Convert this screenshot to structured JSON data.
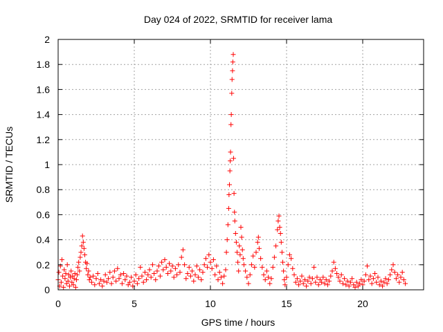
{
  "chart_data": {
    "type": "scatter",
    "title": "Day 024 of 2022, SRMTID for receiver lama",
    "xlabel": "GPS time / hours",
    "ylabel": "SRMTID / TECUs",
    "xlim": [
      0,
      24
    ],
    "ylim": [
      0,
      2
    ],
    "xticks": [
      0,
      5,
      10,
      15,
      20
    ],
    "yticks": [
      0,
      0.2,
      0.4,
      0.6,
      0.8,
      1,
      1.2,
      1.4,
      1.6,
      1.8,
      2
    ],
    "xtick_labels": [
      "0",
      "5",
      "10",
      "15",
      "20"
    ],
    "ytick_labels": [
      "0",
      "0.2",
      "0.4",
      "0.6",
      "0.8",
      "1",
      "1.2",
      "1.4",
      "1.6",
      "1.8",
      "2"
    ],
    "grid": true,
    "marker": "+",
    "color": "#ff0000",
    "series": [
      {
        "name": "SRMTID",
        "points": [
          [
            0.0,
            0.08
          ],
          [
            0.05,
            0.14
          ],
          [
            0.1,
            0.03
          ],
          [
            0.15,
            0.19
          ],
          [
            0.2,
            0.06
          ],
          [
            0.25,
            0.24
          ],
          [
            0.3,
            0.11
          ],
          [
            0.35,
            0.02
          ],
          [
            0.4,
            0.16
          ],
          [
            0.45,
            0.09
          ],
          [
            0.5,
            0.13
          ],
          [
            0.55,
            0.05
          ],
          [
            0.6,
            0.2
          ],
          [
            0.65,
            0.07
          ],
          [
            0.7,
            0.12
          ],
          [
            0.75,
            0.03
          ],
          [
            0.8,
            0.1
          ],
          [
            0.85,
            0.15
          ],
          [
            0.9,
            0.06
          ],
          [
            0.95,
            0.11
          ],
          [
            1.0,
            0.04
          ],
          [
            1.05,
            0.09
          ],
          [
            1.1,
            0.13
          ],
          [
            1.15,
            0.02
          ],
          [
            1.2,
            0.08
          ],
          [
            1.25,
            0.12
          ],
          [
            1.3,
            0.18
          ],
          [
            1.35,
            0.22
          ],
          [
            1.4,
            0.15
          ],
          [
            1.45,
            0.26
          ],
          [
            1.5,
            0.3
          ],
          [
            1.55,
            0.35
          ],
          [
            1.6,
            0.43
          ],
          [
            1.65,
            0.38
          ],
          [
            1.7,
            0.33
          ],
          [
            1.75,
            0.28
          ],
          [
            1.8,
            0.22
          ],
          [
            1.85,
            0.17
          ],
          [
            1.9,
            0.21
          ],
          [
            1.95,
            0.12
          ],
          [
            2.0,
            0.15
          ],
          [
            2.05,
            0.08
          ],
          [
            2.1,
            0.1
          ],
          [
            2.2,
            0.06
          ],
          [
            2.3,
            0.11
          ],
          [
            2.4,
            0.04
          ],
          [
            2.5,
            0.09
          ],
          [
            2.6,
            0.13
          ],
          [
            2.7,
            0.05
          ],
          [
            2.8,
            0.08
          ],
          [
            2.9,
            0.03
          ],
          [
            3.0,
            0.07
          ],
          [
            3.1,
            0.12
          ],
          [
            3.2,
            0.06
          ],
          [
            3.3,
            0.09
          ],
          [
            3.4,
            0.14
          ],
          [
            3.5,
            0.05
          ],
          [
            3.6,
            0.1
          ],
          [
            3.7,
            0.15
          ],
          [
            3.8,
            0.07
          ],
          [
            3.9,
            0.17
          ],
          [
            4.0,
            0.09
          ],
          [
            4.1,
            0.12
          ],
          [
            4.2,
            0.05
          ],
          [
            4.3,
            0.13
          ],
          [
            4.4,
            0.08
          ],
          [
            4.5,
            0.11
          ],
          [
            4.6,
            0.04
          ],
          [
            4.7,
            0.06
          ],
          [
            4.8,
            0.1
          ],
          [
            4.9,
            0.03
          ],
          [
            5.0,
            0.07
          ],
          [
            5.1,
            0.12
          ],
          [
            5.2,
            0.05
          ],
          [
            5.3,
            0.09
          ],
          [
            5.4,
            0.18
          ],
          [
            5.5,
            0.11
          ],
          [
            5.6,
            0.06
          ],
          [
            5.7,
            0.14
          ],
          [
            5.8,
            0.08
          ],
          [
            5.9,
            0.12
          ],
          [
            6.0,
            0.16
          ],
          [
            6.1,
            0.1
          ],
          [
            6.2,
            0.2
          ],
          [
            6.3,
            0.13
          ],
          [
            6.4,
            0.08
          ],
          [
            6.5,
            0.15
          ],
          [
            6.6,
            0.19
          ],
          [
            6.7,
            0.11
          ],
          [
            6.8,
            0.22
          ],
          [
            6.9,
            0.16
          ],
          [
            7.0,
            0.24
          ],
          [
            7.1,
            0.18
          ],
          [
            7.2,
            0.13
          ],
          [
            7.3,
            0.21
          ],
          [
            7.4,
            0.15
          ],
          [
            7.5,
            0.19
          ],
          [
            7.6,
            0.1
          ],
          [
            7.7,
            0.17
          ],
          [
            7.8,
            0.12
          ],
          [
            7.9,
            0.2
          ],
          [
            8.0,
            0.14
          ],
          [
            8.1,
            0.26
          ],
          [
            8.2,
            0.32
          ],
          [
            8.3,
            0.2
          ],
          [
            8.4,
            0.09
          ],
          [
            8.5,
            0.13
          ],
          [
            8.6,
            0.18
          ],
          [
            8.7,
            0.11
          ],
          [
            8.8,
            0.15
          ],
          [
            8.9,
            0.07
          ],
          [
            9.0,
            0.12
          ],
          [
            9.1,
            0.19
          ],
          [
            9.2,
            0.1
          ],
          [
            9.3,
            0.16
          ],
          [
            9.4,
            0.08
          ],
          [
            9.5,
            0.14
          ],
          [
            9.6,
            0.2
          ],
          [
            9.7,
            0.25
          ],
          [
            9.8,
            0.18
          ],
          [
            9.9,
            0.28
          ],
          [
            10.0,
            0.22
          ],
          [
            10.1,
            0.17
          ],
          [
            10.2,
            0.24
          ],
          [
            10.3,
            0.12
          ],
          [
            10.4,
            0.19
          ],
          [
            10.5,
            0.08
          ],
          [
            10.6,
            0.14
          ],
          [
            10.7,
            0.1
          ],
          [
            10.8,
            0.05
          ],
          [
            10.9,
            0.11
          ],
          [
            11.0,
            0.16
          ],
          [
            11.05,
            0.3
          ],
          [
            11.1,
            0.4
          ],
          [
            11.15,
            0.52
          ],
          [
            11.2,
            0.65
          ],
          [
            11.22,
            0.76
          ],
          [
            11.25,
            0.84
          ],
          [
            11.28,
            0.95
          ],
          [
            11.3,
            1.03
          ],
          [
            11.32,
            1.1
          ],
          [
            11.35,
            1.32
          ],
          [
            11.37,
            1.4
          ],
          [
            11.4,
            1.57
          ],
          [
            11.42,
            1.68
          ],
          [
            11.45,
            1.75
          ],
          [
            11.47,
            1.82
          ],
          [
            11.5,
            1.88
          ],
          [
            11.52,
            1.05
          ],
          [
            11.55,
            0.77
          ],
          [
            11.58,
            0.62
          ],
          [
            11.6,
            0.55
          ],
          [
            11.65,
            0.45
          ],
          [
            11.7,
            0.38
          ],
          [
            11.75,
            0.3
          ],
          [
            11.8,
            0.22
          ],
          [
            11.85,
            0.15
          ],
          [
            11.9,
            0.35
          ],
          [
            11.95,
            0.28
          ],
          [
            12.0,
            0.5
          ],
          [
            12.05,
            0.42
          ],
          [
            12.1,
            0.32
          ],
          [
            12.15,
            0.25
          ],
          [
            12.2,
            0.2
          ],
          [
            12.3,
            0.15
          ],
          [
            12.4,
            0.1
          ],
          [
            12.5,
            0.05
          ],
          [
            12.6,
            0.12
          ],
          [
            12.7,
            0.2
          ],
          [
            12.8,
            0.27
          ],
          [
            12.9,
            0.18
          ],
          [
            13.0,
            0.3
          ],
          [
            13.1,
            0.38
          ],
          [
            13.15,
            0.42
          ],
          [
            13.2,
            0.33
          ],
          [
            13.3,
            0.25
          ],
          [
            13.4,
            0.18
          ],
          [
            13.5,
            0.12
          ],
          [
            13.6,
            0.08
          ],
          [
            13.7,
            0.15
          ],
          [
            13.8,
            0.1
          ],
          [
            13.9,
            0.05
          ],
          [
            14.0,
            0.09
          ],
          [
            14.1,
            0.18
          ],
          [
            14.2,
            0.26
          ],
          [
            14.3,
            0.35
          ],
          [
            14.4,
            0.48
          ],
          [
            14.45,
            0.55
          ],
          [
            14.5,
            0.59
          ],
          [
            14.55,
            0.5
          ],
          [
            14.6,
            0.45
          ],
          [
            14.65,
            0.38
          ],
          [
            14.7,
            0.3
          ],
          [
            14.75,
            0.22
          ],
          [
            14.8,
            0.15
          ],
          [
            14.85,
            0.08
          ],
          [
            14.9,
            0.04
          ],
          [
            15.0,
            0.1
          ],
          [
            15.1,
            0.2
          ],
          [
            15.2,
            0.28
          ],
          [
            15.3,
            0.25
          ],
          [
            15.4,
            0.17
          ],
          [
            15.5,
            0.12
          ],
          [
            15.6,
            0.06
          ],
          [
            15.7,
            0.09
          ],
          [
            15.8,
            0.04
          ],
          [
            15.9,
            0.07
          ],
          [
            16.0,
            0.11
          ],
          [
            16.1,
            0.05
          ],
          [
            16.2,
            0.08
          ],
          [
            16.3,
            0.03
          ],
          [
            16.4,
            0.07
          ],
          [
            16.5,
            0.1
          ],
          [
            16.6,
            0.05
          ],
          [
            16.7,
            0.09
          ],
          [
            16.8,
            0.18
          ],
          [
            16.9,
            0.06
          ],
          [
            17.0,
            0.1
          ],
          [
            17.1,
            0.04
          ],
          [
            17.2,
            0.08
          ],
          [
            17.3,
            0.06
          ],
          [
            17.4,
            0.1
          ],
          [
            17.5,
            0.05
          ],
          [
            17.6,
            0.08
          ],
          [
            17.7,
            0.04
          ],
          [
            17.8,
            0.07
          ],
          [
            17.9,
            0.11
          ],
          [
            18.0,
            0.15
          ],
          [
            18.1,
            0.22
          ],
          [
            18.2,
            0.17
          ],
          [
            18.3,
            0.13
          ],
          [
            18.4,
            0.1
          ],
          [
            18.5,
            0.07
          ],
          [
            18.6,
            0.12
          ],
          [
            18.7,
            0.05
          ],
          [
            18.8,
            0.09
          ],
          [
            18.9,
            0.04
          ],
          [
            19.0,
            0.07
          ],
          [
            19.1,
            0.03
          ],
          [
            19.2,
            0.06
          ],
          [
            19.3,
            0.09
          ],
          [
            19.4,
            0.04
          ],
          [
            19.5,
            0.02
          ],
          [
            19.6,
            0.06
          ],
          [
            19.7,
            0.03
          ],
          [
            19.8,
            0.05
          ],
          [
            19.9,
            0.08
          ],
          [
            20.0,
            0.04
          ],
          [
            20.1,
            0.07
          ],
          [
            20.2,
            0.12
          ],
          [
            20.3,
            0.19
          ],
          [
            20.4,
            0.08
          ],
          [
            20.5,
            0.11
          ],
          [
            20.6,
            0.05
          ],
          [
            20.7,
            0.09
          ],
          [
            20.8,
            0.13
          ],
          [
            20.9,
            0.06
          ],
          [
            21.0,
            0.1
          ],
          [
            21.1,
            0.04
          ],
          [
            21.2,
            0.07
          ],
          [
            21.3,
            0.03
          ],
          [
            21.4,
            0.06
          ],
          [
            21.5,
            0.09
          ],
          [
            21.6,
            0.05
          ],
          [
            21.7,
            0.08
          ],
          [
            21.8,
            0.12
          ],
          [
            21.9,
            0.16
          ],
          [
            22.0,
            0.2
          ],
          [
            22.1,
            0.14
          ],
          [
            22.2,
            0.09
          ],
          [
            22.3,
            0.12
          ],
          [
            22.4,
            0.06
          ],
          [
            22.5,
            0.1
          ],
          [
            22.6,
            0.14
          ],
          [
            22.7,
            0.08
          ],
          [
            22.8,
            0.05
          ]
        ]
      }
    ]
  }
}
